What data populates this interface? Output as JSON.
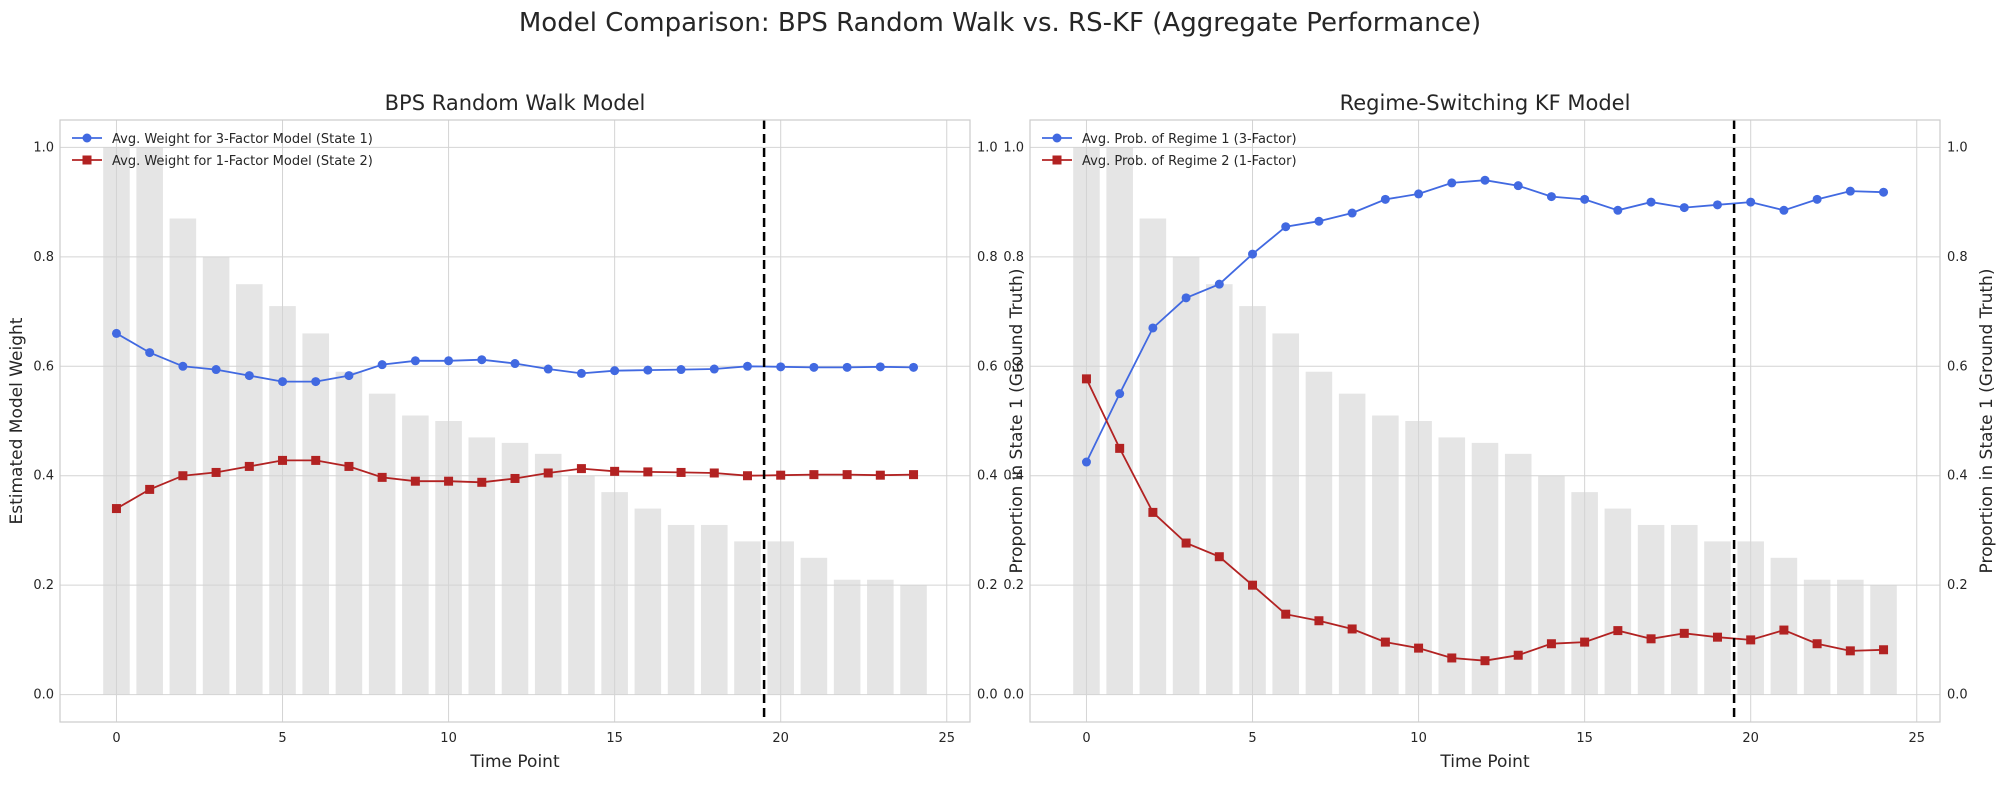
{
  "figure": {
    "title": "Model Comparison: BPS Random Walk vs. RS-KF (Aggregate Performance)"
  },
  "chart_data": [
    {
      "type": "line",
      "title": "BPS Random Walk Model",
      "xlabel": "Time Point",
      "ylabel": "Estimated Model Weight",
      "ylabel_right": "Proportion in State 1 (Ground Truth)",
      "xlim": [
        -1.7,
        25.7
      ],
      "ylim": [
        -0.05,
        1.05
      ],
      "ylim_right": [
        -0.05,
        1.05
      ],
      "xticks": [
        0,
        5,
        10,
        15,
        20,
        25
      ],
      "yticks": [
        0.0,
        0.2,
        0.4,
        0.6,
        0.8,
        1.0
      ],
      "grid": true,
      "legend_location": "upper left",
      "vline_x": 19.5,
      "x": [
        0,
        1,
        2,
        3,
        4,
        5,
        6,
        7,
        8,
        9,
        10,
        11,
        12,
        13,
        14,
        15,
        16,
        17,
        18,
        19,
        20,
        21,
        22,
        23,
        24
      ],
      "bars": {
        "name": "Proportion in State 1 (Ground Truth)",
        "color": "#d3d3d3",
        "values": [
          1.0,
          1.0,
          0.87,
          0.8,
          0.75,
          0.71,
          0.66,
          0.59,
          0.55,
          0.51,
          0.5,
          0.47,
          0.46,
          0.44,
          0.4,
          0.37,
          0.34,
          0.31,
          0.31,
          0.28,
          0.28,
          0.25,
          0.21,
          0.21,
          0.2
        ]
      },
      "series": [
        {
          "name": "Avg. Weight for 3-Factor Model (State 1)",
          "color": "#4169e1",
          "marker": "circle",
          "values": [
            0.66,
            0.625,
            0.6,
            0.594,
            0.583,
            0.572,
            0.572,
            0.583,
            0.603,
            0.61,
            0.61,
            0.612,
            0.605,
            0.595,
            0.587,
            0.592,
            0.593,
            0.594,
            0.595,
            0.6,
            0.599,
            0.598,
            0.598,
            0.599,
            0.598
          ]
        },
        {
          "name": "Avg. Weight for 1-Factor Model (State 2)",
          "color": "#b22222",
          "marker": "square",
          "values": [
            0.34,
            0.375,
            0.4,
            0.406,
            0.417,
            0.428,
            0.428,
            0.417,
            0.397,
            0.39,
            0.39,
            0.388,
            0.395,
            0.405,
            0.413,
            0.408,
            0.407,
            0.406,
            0.405,
            0.4,
            0.401,
            0.402,
            0.402,
            0.401,
            0.402
          ]
        }
      ]
    },
    {
      "type": "line",
      "title": "Regime-Switching KF Model",
      "xlabel": "Time Point",
      "ylabel": "",
      "ylabel_right": "Proportion in State 1 (Ground Truth)",
      "xlim": [
        -1.7,
        25.7
      ],
      "ylim": [
        -0.05,
        1.05
      ],
      "ylim_right": [
        -0.05,
        1.05
      ],
      "xticks": [
        0,
        5,
        10,
        15,
        20,
        25
      ],
      "yticks": [
        0.0,
        0.2,
        0.4,
        0.6,
        0.8,
        1.0
      ],
      "grid": true,
      "legend_location": "upper left",
      "vline_x": 19.5,
      "x": [
        0,
        1,
        2,
        3,
        4,
        5,
        6,
        7,
        8,
        9,
        10,
        11,
        12,
        13,
        14,
        15,
        16,
        17,
        18,
        19,
        20,
        21,
        22,
        23,
        24
      ],
      "bars": {
        "name": "Proportion in State 1 (Ground Truth)",
        "color": "#d3d3d3",
        "values": [
          1.0,
          1.0,
          0.87,
          0.8,
          0.75,
          0.71,
          0.66,
          0.59,
          0.55,
          0.51,
          0.5,
          0.47,
          0.46,
          0.44,
          0.4,
          0.37,
          0.34,
          0.31,
          0.31,
          0.28,
          0.28,
          0.25,
          0.21,
          0.21,
          0.2
        ]
      },
      "series": [
        {
          "name": "Avg. Prob. of Regime 1 (3-Factor)",
          "color": "#4169e1",
          "marker": "circle",
          "values": [
            0.425,
            0.55,
            0.67,
            0.725,
            0.75,
            0.805,
            0.855,
            0.865,
            0.88,
            0.905,
            0.915,
            0.935,
            0.94,
            0.93,
            0.91,
            0.905,
            0.885,
            0.9,
            0.89,
            0.895,
            0.9,
            0.885,
            0.905,
            0.92,
            0.918
          ]
        },
        {
          "name": "Avg. Prob. of Regime 2 (1-Factor)",
          "color": "#b22222",
          "marker": "square",
          "values": [
            0.577,
            0.45,
            0.333,
            0.277,
            0.252,
            0.2,
            0.147,
            0.135,
            0.12,
            0.096,
            0.085,
            0.067,
            0.062,
            0.072,
            0.093,
            0.096,
            0.117,
            0.102,
            0.112,
            0.105,
            0.1,
            0.118,
            0.093,
            0.08,
            0.082
          ]
        }
      ]
    }
  ]
}
